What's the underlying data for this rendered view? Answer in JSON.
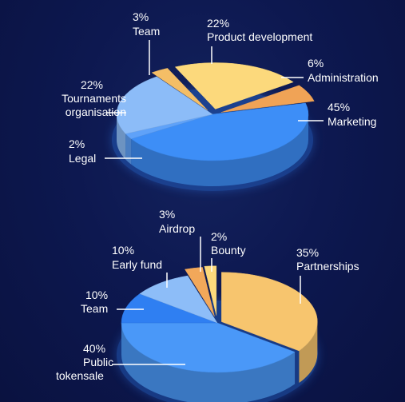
{
  "chart_data": [
    {
      "type": "pie",
      "slices": [
        {
          "name": "Marketing",
          "value": 45,
          "pct_label": "45%",
          "color": "#3d8ef7"
        },
        {
          "name": "Legal",
          "value": 2,
          "pct_label": "2%",
          "color": "#5fa2f9"
        },
        {
          "name": "Tournaments organisation",
          "value": 22,
          "pct_label": "22%",
          "color": "#8cbcf8"
        },
        {
          "name": "Team",
          "value": 3,
          "pct_label": "3%",
          "color": "#f4be66"
        },
        {
          "name": "Product development",
          "value": 22,
          "pct_label": "22%",
          "color": "#fcd97c"
        },
        {
          "name": "Administration",
          "value": 6,
          "pct_label": "6%",
          "color": "#f0a356"
        }
      ],
      "labels": {
        "team": {
          "pct": "3%",
          "line1": "Team"
        },
        "product": {
          "pct": "22%",
          "line1": "Product development"
        },
        "admin": {
          "pct": "6%",
          "line1": "Administration"
        },
        "tournaments": {
          "pct": "22%",
          "line1": "Tournaments",
          "line2": "organisation"
        },
        "marketing": {
          "pct": "45%",
          "line1": "Marketing"
        },
        "legal": {
          "pct": "2%",
          "line1": "Legal"
        }
      }
    },
    {
      "type": "pie",
      "slices": [
        {
          "name": "Partnerships",
          "value": 35,
          "pct_label": "35%",
          "color": "#f7c56e"
        },
        {
          "name": "Public tokensale",
          "value": 40,
          "pct_label": "40%",
          "color": "#4a98f8"
        },
        {
          "name": "Team",
          "value": 10,
          "pct_label": "10%",
          "color": "#2f7ff2"
        },
        {
          "name": "Early fund",
          "value": 10,
          "pct_label": "10%",
          "color": "#8dbdf8"
        },
        {
          "name": "Airdrop",
          "value": 3,
          "pct_label": "3%",
          "color": "#f2a85a"
        },
        {
          "name": "Bounty",
          "value": 2,
          "pct_label": "2%",
          "color": "#fcd97c"
        }
      ],
      "labels": {
        "airdrop": {
          "pct": "3%",
          "line1": "Airdrop"
        },
        "bounty": {
          "pct": "2%",
          "line1": "Bounty"
        },
        "earlyfund": {
          "pct": "10%",
          "line1": "Early fund"
        },
        "partnerships": {
          "pct": "35%",
          "line1": "Partnerships"
        },
        "team": {
          "pct": "10%",
          "line1": "Team"
        },
        "public": {
          "pct": "40%",
          "line1": "Public",
          "line2": "tokensale"
        }
      }
    }
  ]
}
